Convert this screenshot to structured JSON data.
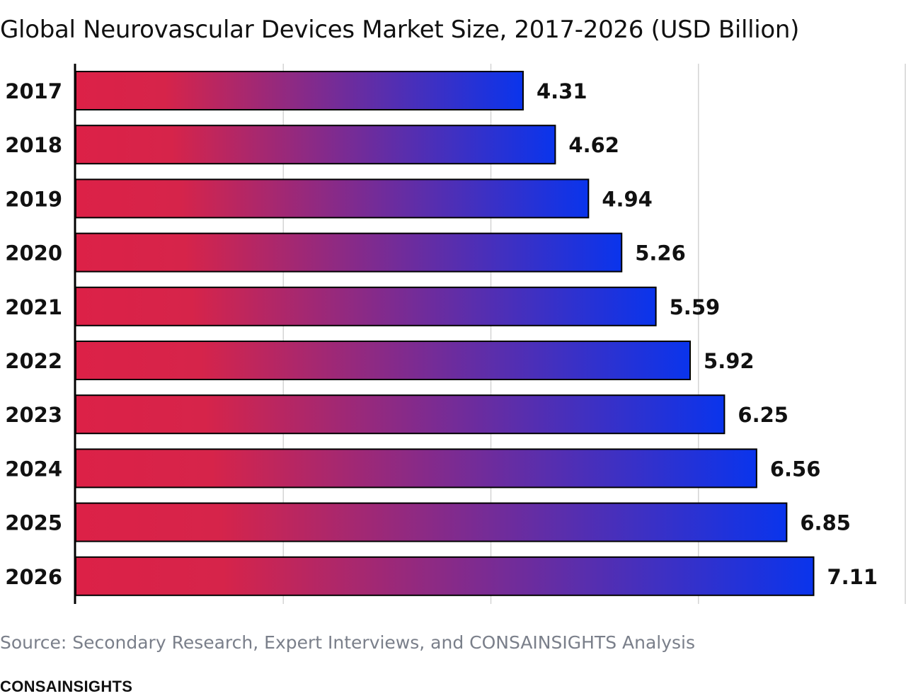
{
  "title": "Global Neurovascular Devices Market Size, 2017-2026 (USD Billion)",
  "source": "Source: Secondary Research, Expert Interviews, and CONSAINSIGHTS Analysis",
  "brand": "CONSAINSIGHTS",
  "colors": {
    "bar_start": "#dc2147",
    "bar_mid": "#d6244a",
    "bar_end": "#0a34ec",
    "grid": "#d4d4d4",
    "axis": "#000000"
  },
  "chart_data": {
    "type": "bar",
    "orientation": "horizontal",
    "title": "Global Neurovascular Devices Market Size, 2017-2026 (USD Billion)",
    "categories": [
      "2017",
      "2018",
      "2019",
      "2020",
      "2021",
      "2022",
      "2023",
      "2024",
      "2025",
      "2026"
    ],
    "values": [
      4.31,
      4.62,
      4.94,
      5.26,
      5.59,
      5.92,
      6.25,
      6.56,
      6.85,
      7.11
    ],
    "data_labels": [
      "4.31",
      "4.62",
      "4.94",
      "5.26",
      "5.59",
      "5.92",
      "6.25",
      "6.56",
      "6.85",
      "7.11"
    ],
    "xlim": [
      0,
      8
    ],
    "grid": true
  }
}
